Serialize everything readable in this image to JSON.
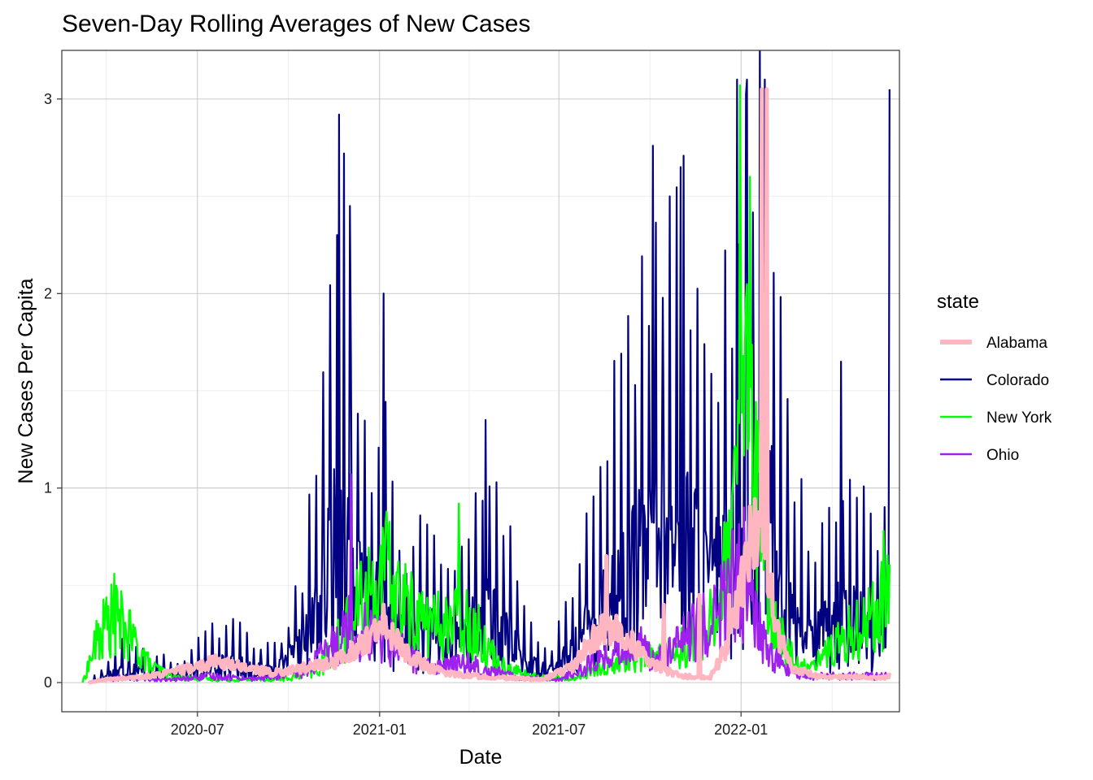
{
  "chart_data": {
    "type": "line",
    "title": "Seven-Day Rolling Averages of New Cases",
    "xlabel": "Date",
    "ylabel": "New Cases Per Capita",
    "x_range": [
      "2020-02-15",
      "2022-06-10"
    ],
    "x_ticks": [
      "2020-07",
      "2021-01",
      "2021-07",
      "2022-01"
    ],
    "x_tick_dates": [
      "2020-07-01",
      "2021-01-01",
      "2021-07-01",
      "2022-01-01"
    ],
    "ylim": [
      -0.15,
      3.25
    ],
    "y_ticks": [
      0,
      1,
      2,
      3
    ],
    "grid": true,
    "legend": {
      "title": "state",
      "position": "right"
    },
    "series": [
      {
        "name": "Alabama",
        "color": "#FFB6C1",
        "envelope": [
          [
            "2020-03-13",
            0
          ],
          [
            "2020-04-01",
            0.02
          ],
          [
            "2020-05-01",
            0.03
          ],
          [
            "2020-06-01",
            0.06
          ],
          [
            "2020-07-01",
            0.1
          ],
          [
            "2020-07-20",
            0.13
          ],
          [
            "2020-08-15",
            0.1
          ],
          [
            "2020-09-15",
            0.06
          ],
          [
            "2020-10-15",
            0.09
          ],
          [
            "2020-11-15",
            0.12
          ],
          [
            "2020-12-10",
            0.22
          ],
          [
            "2020-12-25",
            0.3
          ],
          [
            "2021-01-10",
            0.33
          ],
          [
            "2021-01-25",
            0.2
          ],
          [
            "2021-02-20",
            0.09
          ],
          [
            "2021-03-20",
            0.05
          ],
          [
            "2021-05-01",
            0.03
          ],
          [
            "2021-06-15",
            0.02
          ],
          [
            "2021-07-15",
            0.1
          ],
          [
            "2021-08-01",
            0.25
          ],
          [
            "2021-08-20",
            0.35
          ],
          [
            "2021-09-10",
            0.26
          ],
          [
            "2021-10-01",
            0.12
          ],
          [
            "2021-11-01",
            0.04
          ],
          [
            "2021-12-01",
            0.03
          ],
          [
            "2021-12-20",
            0.25
          ],
          [
            "2022-01-05",
            0.75
          ],
          [
            "2022-01-20",
            1.0
          ],
          [
            "2022-02-05",
            0.35
          ],
          [
            "2022-02-20",
            0.1
          ],
          [
            "2022-03-20",
            0.04
          ],
          [
            "2022-05-31",
            0.03
          ]
        ],
        "spikes": [
          [
            "2021-01-05",
            0.4
          ],
          [
            "2021-08-18",
            0.65
          ],
          [
            "2021-10-15",
            0.4
          ],
          [
            "2021-11-20",
            0.45
          ],
          [
            "2021-12-20",
            0.45
          ],
          [
            "2022-01-22",
            3.05
          ],
          [
            "2022-01-27",
            3.05
          ],
          [
            "2022-05-31",
            0.05
          ]
        ]
      },
      {
        "name": "Colorado",
        "color": "#000080",
        "envelope": [
          [
            "2020-03-13",
            0
          ],
          [
            "2020-04-01",
            0.12
          ],
          [
            "2020-04-20",
            0.25
          ],
          [
            "2020-05-15",
            0.15
          ],
          [
            "2020-06-15",
            0.12
          ],
          [
            "2020-07-15",
            0.3
          ],
          [
            "2020-08-10",
            0.3
          ],
          [
            "2020-09-01",
            0.2
          ],
          [
            "2020-09-25",
            0.25
          ],
          [
            "2020-10-15",
            0.6
          ],
          [
            "2020-11-01",
            1.3
          ],
          [
            "2020-11-15",
            2.2
          ],
          [
            "2020-11-25",
            2.5
          ],
          [
            "2020-12-10",
            1.6
          ],
          [
            "2020-12-25",
            1.2
          ],
          [
            "2021-01-10",
            1.4
          ],
          [
            "2021-01-20",
            0.7
          ],
          [
            "2021-02-15",
            0.85
          ],
          [
            "2021-03-10",
            0.6
          ],
          [
            "2021-04-01",
            0.9
          ],
          [
            "2021-04-20",
            1.1
          ],
          [
            "2021-05-10",
            0.8
          ],
          [
            "2021-06-01",
            0.3
          ],
          [
            "2021-06-25",
            0.2
          ],
          [
            "2021-07-20",
            0.6
          ],
          [
            "2021-08-10",
            1.3
          ],
          [
            "2021-09-01",
            1.7
          ],
          [
            "2021-10-01",
            2.2
          ],
          [
            "2021-11-01",
            2.6
          ],
          [
            "2021-12-01",
            1.6
          ],
          [
            "2021-12-25",
            2.3
          ],
          [
            "2022-01-05",
            3.0
          ],
          [
            "2022-01-20",
            3.0
          ],
          [
            "2022-02-05",
            2.5
          ],
          [
            "2022-02-20",
            1.2
          ],
          [
            "2022-03-15",
            0.7
          ],
          [
            "2022-04-15",
            1.2
          ],
          [
            "2022-05-15",
            0.8
          ],
          [
            "2022-05-31",
            1.2
          ]
        ],
        "spikes": [
          [
            "2020-11-21",
            2.92
          ],
          [
            "2020-11-26",
            2.72
          ],
          [
            "2020-12-02",
            2.45
          ],
          [
            "2021-01-05",
            2.0
          ],
          [
            "2021-04-18",
            1.35
          ],
          [
            "2021-10-04",
            2.76
          ],
          [
            "2021-11-01",
            2.65
          ],
          [
            "2021-12-28",
            3.1
          ],
          [
            "2022-01-07",
            3.1
          ],
          [
            "2022-01-25",
            3.1
          ],
          [
            "2022-04-12",
            1.65
          ],
          [
            "2022-05-31",
            3.05
          ]
        ]
      },
      {
        "name": "New York",
        "color": "#00FF00",
        "envelope": [
          [
            "2020-03-07",
            0
          ],
          [
            "2020-03-20",
            0.3
          ],
          [
            "2020-04-01",
            0.48
          ],
          [
            "2020-04-10",
            0.5
          ],
          [
            "2020-04-25",
            0.35
          ],
          [
            "2020-05-15",
            0.12
          ],
          [
            "2020-06-10",
            0.04
          ],
          [
            "2020-08-01",
            0.02
          ],
          [
            "2020-10-01",
            0.03
          ],
          [
            "2020-11-01",
            0.1
          ],
          [
            "2020-12-01",
            0.45
          ],
          [
            "2020-12-20",
            0.7
          ],
          [
            "2021-01-10",
            0.82
          ],
          [
            "2021-02-01",
            0.55
          ],
          [
            "2021-03-01",
            0.45
          ],
          [
            "2021-04-01",
            0.5
          ],
          [
            "2021-05-01",
            0.15
          ],
          [
            "2021-06-01",
            0.05
          ],
          [
            "2021-07-15",
            0.03
          ],
          [
            "2021-08-15",
            0.12
          ],
          [
            "2021-09-15",
            0.2
          ],
          [
            "2021-10-15",
            0.2
          ],
          [
            "2021-11-15",
            0.35
          ],
          [
            "2021-12-10",
            0.6
          ],
          [
            "2021-12-25",
            1.2
          ],
          [
            "2022-01-05",
            2.5
          ],
          [
            "2022-01-15",
            1.5
          ],
          [
            "2022-02-01",
            0.5
          ],
          [
            "2022-03-01",
            0.1
          ],
          [
            "2022-04-01",
            0.25
          ],
          [
            "2022-05-01",
            0.45
          ],
          [
            "2022-05-31",
            0.65
          ]
        ],
        "spikes": [
          [
            "2020-04-08",
            0.56
          ],
          [
            "2021-01-08",
            0.88
          ],
          [
            "2021-03-22",
            0.92
          ],
          [
            "2021-12-31",
            3.07
          ],
          [
            "2022-01-10",
            2.6
          ],
          [
            "2022-05-25",
            0.78
          ]
        ]
      },
      {
        "name": "Ohio",
        "color": "#A020F0",
        "envelope": [
          [
            "2020-03-13",
            0
          ],
          [
            "2020-04-15",
            0.04
          ],
          [
            "2020-06-01",
            0.02
          ],
          [
            "2020-07-15",
            0.05
          ],
          [
            "2020-09-01",
            0.03
          ],
          [
            "2020-10-15",
            0.08
          ],
          [
            "2020-11-10",
            0.25
          ],
          [
            "2020-12-01",
            0.45
          ],
          [
            "2020-12-20",
            0.4
          ],
          [
            "2021-01-15",
            0.3
          ],
          [
            "2021-02-15",
            0.12
          ],
          [
            "2021-04-01",
            0.15
          ],
          [
            "2021-05-15",
            0.05
          ],
          [
            "2021-07-01",
            0.02
          ],
          [
            "2021-08-15",
            0.2
          ],
          [
            "2021-09-15",
            0.3
          ],
          [
            "2021-10-15",
            0.2
          ],
          [
            "2021-11-15",
            0.4
          ],
          [
            "2021-12-10",
            0.55
          ],
          [
            "2021-12-28",
            0.85
          ],
          [
            "2022-01-10",
            0.6
          ],
          [
            "2022-02-01",
            0.2
          ],
          [
            "2022-03-01",
            0.05
          ],
          [
            "2022-05-31",
            0.05
          ]
        ],
        "spikes": [
          [
            "2020-12-03",
            1.07
          ],
          [
            "2022-01-04",
            0.9
          ]
        ]
      }
    ]
  }
}
